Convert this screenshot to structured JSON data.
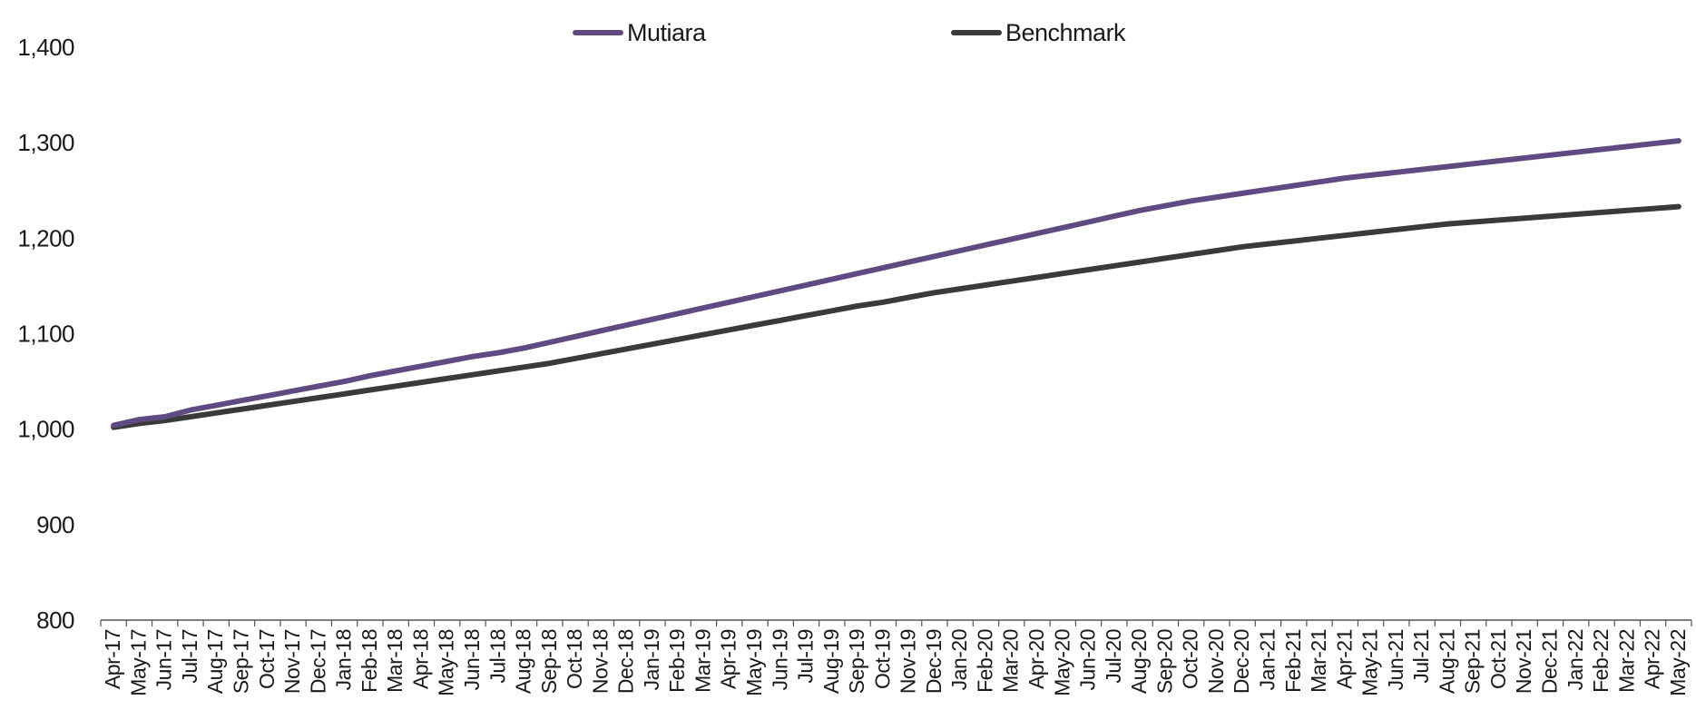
{
  "chart_data": {
    "type": "line",
    "title": "",
    "xlabel": "",
    "ylabel": "",
    "ylim": [
      800,
      1400
    ],
    "yticks": [
      "800",
      "900",
      "1,000",
      "1,100",
      "1,200",
      "1,300",
      "1,400"
    ],
    "grid": false,
    "legend_position": "top-center",
    "x": [
      "Apr-17",
      "May-17",
      "Jun-17",
      "Jul-17",
      "Aug-17",
      "Sep-17",
      "Oct-17",
      "Nov-17",
      "Dec-17",
      "Jan-18",
      "Feb-18",
      "Mar-18",
      "Apr-18",
      "May-18",
      "Jun-18",
      "Jul-18",
      "Aug-18",
      "Sep-18",
      "Oct-18",
      "Nov-18",
      "Dec-18",
      "Jan-19",
      "Feb-19",
      "Mar-19",
      "Apr-19",
      "May-19",
      "Jun-19",
      "Jul-19",
      "Aug-19",
      "Sep-19",
      "Oct-19",
      "Nov-19",
      "Dec-19",
      "Jan-20",
      "Feb-20",
      "Mar-20",
      "Apr-20",
      "May-20",
      "Jun-20",
      "Jul-20",
      "Aug-20",
      "Sep-20",
      "Oct-20",
      "Nov-20",
      "Dec-20",
      "Jan-21",
      "Feb-21",
      "Mar-21",
      "Apr-21",
      "May-21",
      "Jun-21",
      "Jul-21",
      "Aug-21",
      "Sep-21",
      "Oct-21",
      "Nov-21",
      "Dec-21",
      "Jan-22",
      "Feb-22",
      "Mar-22",
      "Apr-22",
      "May-22"
    ],
    "series": [
      {
        "name": "Mutiara",
        "color": "#5f4b82",
        "values": [
          1004,
          1010,
          1013,
          1020,
          1025,
          1030,
          1035,
          1040,
          1045,
          1050,
          1056,
          1061,
          1066,
          1071,
          1076,
          1080,
          1085,
          1091,
          1097,
          1103,
          1109,
          1115,
          1121,
          1127,
          1133,
          1139,
          1145,
          1151,
          1157,
          1163,
          1169,
          1175,
          1181,
          1187,
          1193,
          1199,
          1205,
          1211,
          1217,
          1223,
          1229,
          1234,
          1239,
          1243,
          1247,
          1251,
          1255,
          1259,
          1263,
          1266,
          1269,
          1272,
          1275,
          1278,
          1281,
          1284,
          1287,
          1290,
          1293,
          1296,
          1299,
          1302
        ]
      },
      {
        "name": "Benchmark",
        "color": "#3a3a3a",
        "values": [
          1002,
          1006,
          1009,
          1013,
          1017,
          1021,
          1025,
          1029,
          1033,
          1037,
          1041,
          1045,
          1049,
          1053,
          1057,
          1061,
          1065,
          1069,
          1074,
          1079,
          1084,
          1089,
          1094,
          1099,
          1104,
          1109,
          1114,
          1119,
          1124,
          1129,
          1133,
          1138,
          1143,
          1147,
          1151,
          1155,
          1159,
          1163,
          1167,
          1171,
          1175,
          1179,
          1183,
          1187,
          1191,
          1194,
          1197,
          1200,
          1203,
          1206,
          1209,
          1212,
          1215,
          1217,
          1219,
          1221,
          1223,
          1225,
          1227,
          1229,
          1231,
          1233
        ]
      }
    ]
  }
}
